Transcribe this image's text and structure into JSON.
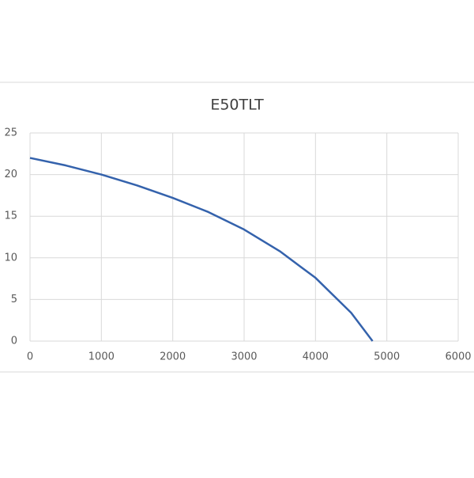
{
  "chart_data": {
    "type": "line",
    "title": "E50TLT",
    "x": [
      0,
      500,
      1000,
      1500,
      2000,
      2500,
      3000,
      3500,
      4000,
      4500,
      4800
    ],
    "series": [
      {
        "name": "E50TLT",
        "color": "#3462ac",
        "values": [
          22,
          21.1,
          20,
          18.7,
          17.2,
          15.5,
          13.4,
          10.8,
          7.6,
          3.4,
          0
        ]
      }
    ],
    "xlim": [
      0,
      6000
    ],
    "xticks": [
      0,
      1000,
      2000,
      3000,
      4000,
      5000,
      6000
    ],
    "ylim": [
      0,
      25
    ],
    "yticks": [
      0,
      5,
      10,
      15,
      20,
      25
    ],
    "grid": true
  }
}
